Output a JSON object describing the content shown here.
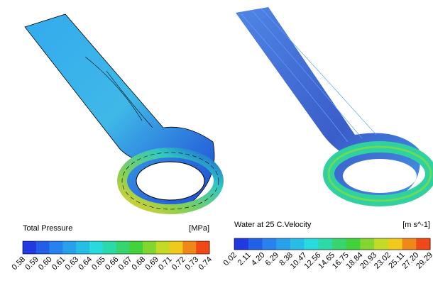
{
  "panels": [
    {
      "legend_title": "Total Pressure",
      "unit": "[MPa]",
      "ticks": [
        "0.58",
        "0.59",
        "0.60",
        "0.61",
        "0.63",
        "0.64",
        "0.65",
        "0.66",
        "0.67",
        "0.68",
        "0.69",
        "0.71",
        "0.72",
        "0.73",
        "0.74"
      ]
    },
    {
      "legend_title": "Water at 25 C.Velocity",
      "unit": "[m s^-1]",
      "ticks": [
        "0.02",
        "2.11",
        "4.20",
        "6.29",
        "8.38",
        "10.47",
        "12.56",
        "14.65",
        "16.75",
        "18.84",
        "20.93",
        "23.02",
        "25.11",
        "27.20",
        "29.29"
      ]
    }
  ]
}
